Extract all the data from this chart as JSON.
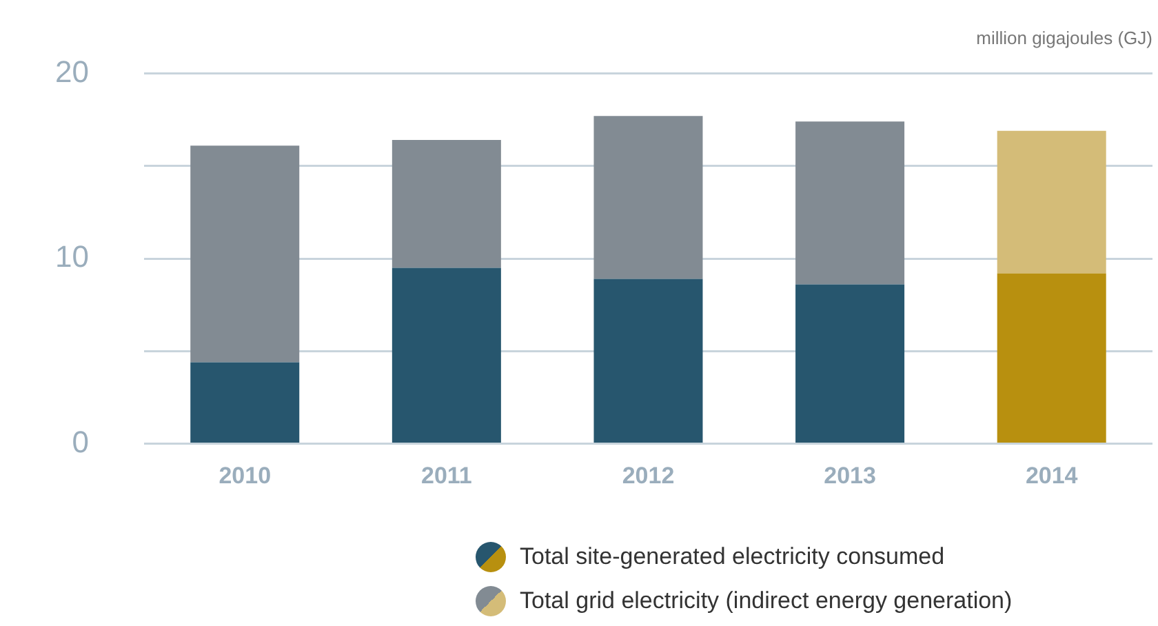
{
  "chart_data": {
    "type": "bar",
    "stacked": true,
    "ylabel": "million gigajoules (GJ)",
    "categories": [
      "2010",
      "2011",
      "2012",
      "2013",
      "2014"
    ],
    "series": [
      {
        "name": "Total site-generated electricity consumed",
        "color": "#27566e",
        "colors": [
          "#27566e",
          "#27566e",
          "#27566e",
          "#27566e",
          "#b8900f"
        ],
        "values": [
          4.4,
          9.5,
          8.9,
          8.6,
          9.2
        ]
      },
      {
        "name": "Total grid electricity (indirect energy generation)",
        "color": "#828b93",
        "colors": [
          "#828b93",
          "#828b93",
          "#828b93",
          "#828b93",
          "#d4bc78"
        ],
        "values": [
          11.7,
          6.9,
          8.8,
          8.8,
          7.7
        ]
      }
    ],
    "ylim": [
      0,
      20
    ],
    "yticks": [
      0,
      {
        "value": 5,
        "label": null
      },
      10,
      {
        "value": 15,
        "label": null
      },
      20
    ],
    "grid": "y",
    "legend": "bottom"
  }
}
